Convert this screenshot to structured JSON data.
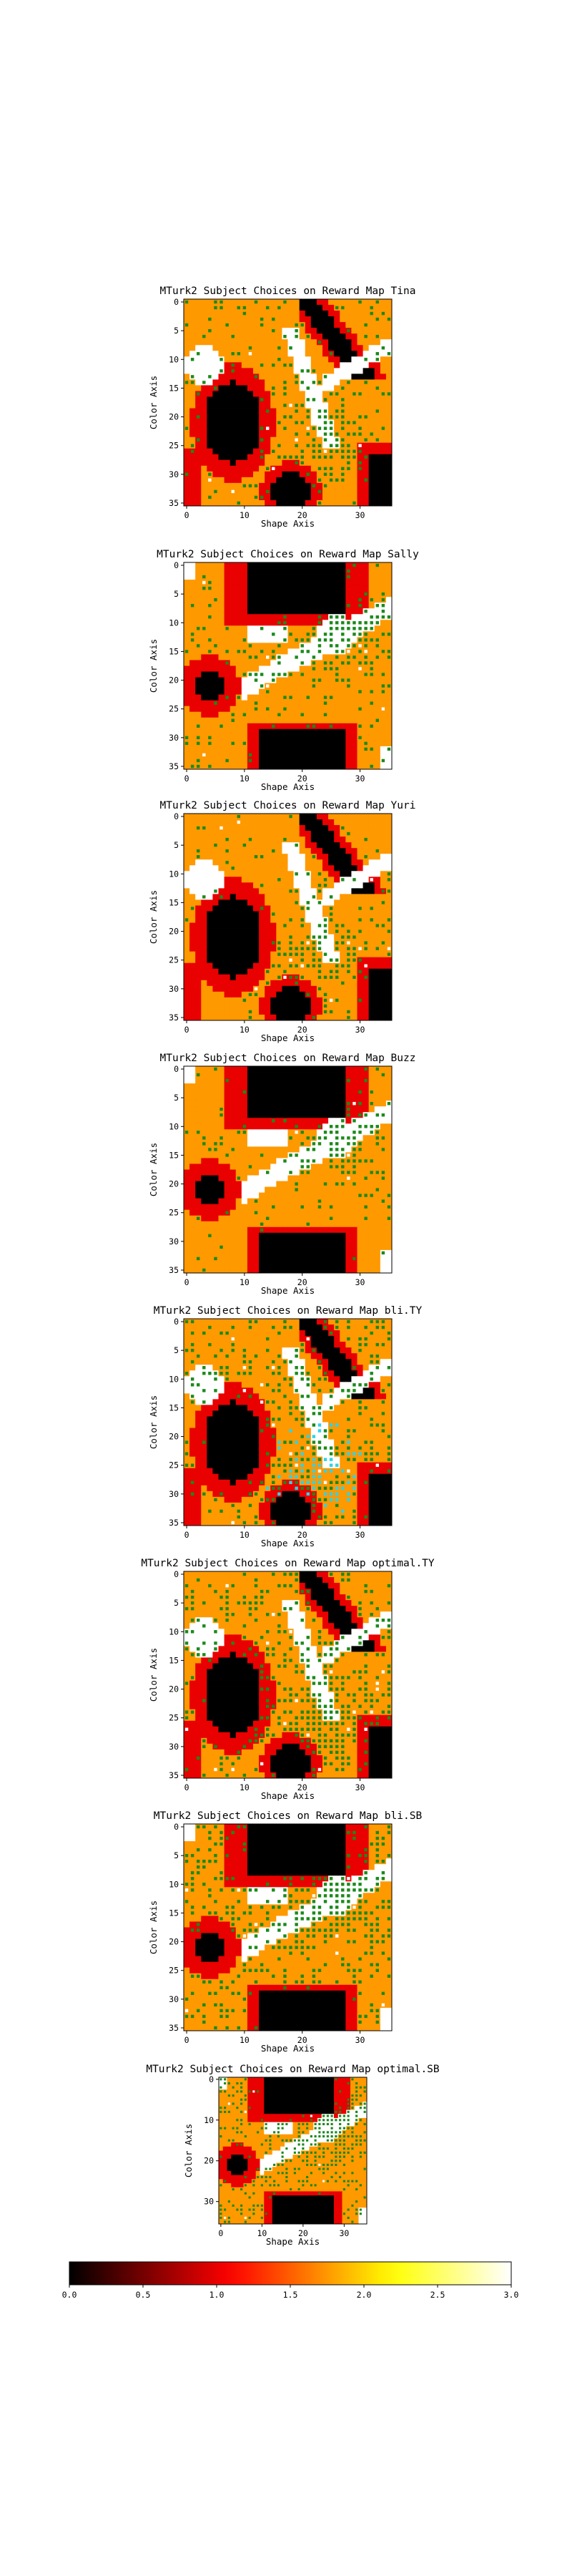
{
  "chart_data": {
    "type": "heatmap",
    "figure_title": "",
    "colormap": "hot (black-red-orange-yellow-white)",
    "colorbar": {
      "min": 0.0,
      "max": 3.0,
      "ticks": [
        "0.0",
        "0.5",
        "1.0",
        "1.5",
        "2.0",
        "2.5",
        "3.0"
      ],
      "orientation": "horizontal"
    },
    "value_levels": [
      0.0,
      1.0,
      1.75,
      3.0
    ],
    "marker_colors": {
      "green": "#1a8a1a",
      "cyan": "#2fd3e6",
      "white": "#ffffff"
    },
    "panels": [
      {
        "title": "MTurk2 Subject Choices on Reward Map Tina",
        "xlabel": "Shape Axis",
        "ylabel": "Color Axis",
        "xticks": [
          "0",
          "10",
          "20",
          "30"
        ],
        "yticks": [
          "0",
          "5",
          "10",
          "15",
          "20",
          "25",
          "30",
          "35"
        ],
        "grid_size": 36,
        "reward_map": "A",
        "choice_density": "medium",
        "choice_cluster_center": [
          24,
          24
        ],
        "cyan_choices": false
      },
      {
        "title": "MTurk2 Subject Choices on Reward Map Sally",
        "xlabel": "Shape Axis",
        "ylabel": "Color Axis",
        "xticks": [
          "0",
          "10",
          "20",
          "30"
        ],
        "yticks": [
          "0",
          "5",
          "10",
          "15",
          "20",
          "25",
          "30",
          "35"
        ],
        "grid_size": 36,
        "reward_map": "B",
        "choice_density": "medium",
        "choice_cluster_center": [
          26,
          12
        ],
        "cyan_choices": false
      },
      {
        "title": "MTurk2 Subject Choices on Reward Map Yuri",
        "xlabel": "Shape Axis",
        "ylabel": "Color Axis",
        "xticks": [
          "0",
          "10",
          "20",
          "30"
        ],
        "yticks": [
          "0",
          "5",
          "10",
          "15",
          "20",
          "25",
          "30",
          "35"
        ],
        "grid_size": 36,
        "reward_map": "A",
        "choice_density": "low",
        "choice_cluster_center": [
          24,
          24
        ],
        "cyan_choices": false
      },
      {
        "title": "MTurk2 Subject Choices on Reward Map Buzz",
        "xlabel": "Shape Axis",
        "ylabel": "Color Axis",
        "xticks": [
          "0",
          "10",
          "20",
          "30"
        ],
        "yticks": [
          "0",
          "5",
          "10",
          "15",
          "20",
          "25",
          "30",
          "35"
        ],
        "grid_size": 36,
        "reward_map": "B",
        "choice_density": "low",
        "choice_cluster_center": [
          26,
          12
        ],
        "cyan_choices": false
      },
      {
        "title": "MTurk2 Subject Choices on Reward Map bli.TY",
        "xlabel": "Shape Axis",
        "ylabel": "Color Axis",
        "xticks": [
          "0",
          "10",
          "20",
          "30"
        ],
        "yticks": [
          "0",
          "5",
          "10",
          "15",
          "20",
          "25",
          "30",
          "35"
        ],
        "grid_size": 36,
        "reward_map": "A",
        "choice_density": "high",
        "choice_cluster_center": [
          22,
          26
        ],
        "cyan_choices": true
      },
      {
        "title": "MTurk2 Subject Choices on Reward Map optimal.TY",
        "xlabel": "Shape Axis",
        "ylabel": "Color Axis",
        "xticks": [
          "0",
          "10",
          "20",
          "30"
        ],
        "yticks": [
          "0",
          "5",
          "10",
          "15",
          "20",
          "25",
          "30",
          "35"
        ],
        "grid_size": 36,
        "reward_map": "A",
        "choice_density": "high",
        "choice_cluster_center": [
          24,
          26
        ],
        "cyan_choices": false
      },
      {
        "title": "MTurk2 Subject Choices on Reward Map bli.SB",
        "xlabel": "Shape Axis",
        "ylabel": "Color Axis",
        "xticks": [
          "0",
          "10",
          "20",
          "30"
        ],
        "yticks": [
          "0",
          "5",
          "10",
          "15",
          "20",
          "25",
          "30",
          "35"
        ],
        "grid_size": 36,
        "reward_map": "B",
        "choice_density": "high",
        "choice_cluster_center": [
          26,
          12
        ],
        "cyan_choices": false
      },
      {
        "title": "MTurk2 Subject Choices on Reward Map optimal.SB",
        "xlabel": "Shape Axis",
        "ylabel": "Color Axis",
        "xticks": [
          "0",
          "10",
          "20",
          "30"
        ],
        "yticks": [
          "0",
          "10",
          "20",
          "30"
        ],
        "grid_size": 36,
        "reward_map": "B",
        "choice_density": "high",
        "choice_cluster_center": [
          27,
          12
        ],
        "cyan_choices": false
      }
    ]
  }
}
